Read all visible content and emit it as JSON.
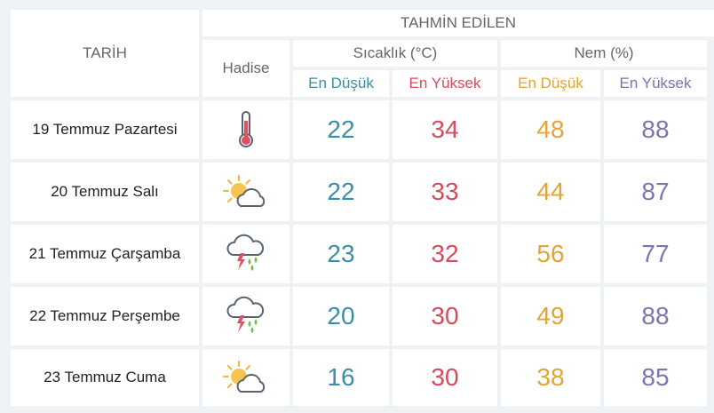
{
  "header": {
    "tarih": "TARİH",
    "tahmin": "TAHMİN EDİLEN",
    "hadise": "Hadise",
    "sicaklik": "Sıcaklık (°C)",
    "nem": "Nem (%)",
    "en_dusuk": "En Düşük",
    "en_yuksek": "En Yüksek"
  },
  "colors": {
    "temp_min": "#3a8ea6",
    "temp_max": "#d64a5e",
    "hum_min": "#e3a336",
    "hum_max": "#7c74ad"
  },
  "rows": [
    {
      "date": "19 Temmuz Pazartesi",
      "icon": "thermometer-icon",
      "temp_min": "22",
      "temp_max": "34",
      "hum_min": "48",
      "hum_max": "88"
    },
    {
      "date": "20 Temmuz Salı",
      "icon": "partly-cloudy-icon",
      "temp_min": "22",
      "temp_max": "33",
      "hum_min": "44",
      "hum_max": "87"
    },
    {
      "date": "21 Temmuz Çarşamba",
      "icon": "thunderstorm-rain-icon",
      "temp_min": "23",
      "temp_max": "32",
      "hum_min": "56",
      "hum_max": "77"
    },
    {
      "date": "22 Temmuz Perşembe",
      "icon": "thunderstorm-rain-icon",
      "temp_min": "20",
      "temp_max": "30",
      "hum_min": "49",
      "hum_max": "88"
    },
    {
      "date": "23 Temmuz Cuma",
      "icon": "partly-cloudy-icon",
      "temp_min": "16",
      "temp_max": "30",
      "hum_min": "38",
      "hum_max": "85"
    }
  ]
}
